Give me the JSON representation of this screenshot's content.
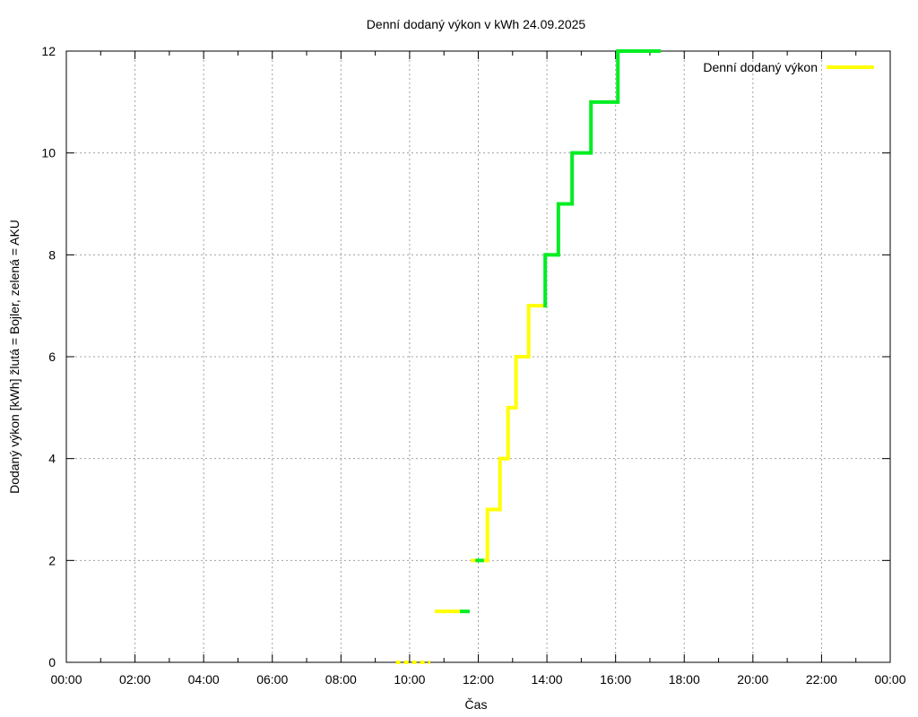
{
  "chart_data": {
    "type": "line",
    "subtype": "step",
    "title": "Denní dodaný výkon v kWh 24.09.2025",
    "xlabel": "Čas",
    "ylabel": "Dodaný výkon [kWh]  žlutá = Bojler, zelená = AKU",
    "xlim": [
      "00:00",
      "24:00"
    ],
    "ylim": [
      0,
      12
    ],
    "x_ticks": [
      "00:00",
      "02:00",
      "04:00",
      "06:00",
      "08:00",
      "10:00",
      "12:00",
      "14:00",
      "16:00",
      "18:00",
      "20:00",
      "22:00",
      "00:00"
    ],
    "y_ticks": [
      0,
      2,
      4,
      6,
      8,
      10,
      12
    ],
    "grid": true,
    "legend": {
      "position": "top-right",
      "entries": [
        {
          "label": "Denní dodaný výkon",
          "color": "#ffff00"
        }
      ]
    },
    "colors": {
      "bojler": "#ffff00",
      "aku": "#00ee22"
    },
    "series": [
      {
        "name": "Denní dodaný výkon",
        "segments": [
          {
            "start": "09:36",
            "end": "10:36",
            "value": 0,
            "source": "Bojler",
            "dashed": true
          },
          {
            "start": "10:44",
            "end": "11:28",
            "value": 1,
            "source": "Bojler"
          },
          {
            "start": "11:28",
            "end": "11:45",
            "value": 1,
            "source": "AKU"
          },
          {
            "start": "11:47",
            "end": "11:55",
            "value": 2,
            "source": "Bojler"
          },
          {
            "start": "11:55",
            "end": "12:10",
            "value": 2,
            "source": "AKU"
          },
          {
            "start": "12:10",
            "end": "12:16",
            "value": 2,
            "source": "Bojler"
          },
          {
            "start": "12:16",
            "end": "12:38",
            "value": 3,
            "source": "Bojler"
          },
          {
            "start": "12:38",
            "end": "12:52",
            "value": 4,
            "source": "Bojler"
          },
          {
            "start": "12:52",
            "end": "13:06",
            "value": 5,
            "source": "Bojler"
          },
          {
            "start": "13:06",
            "end": "13:28",
            "value": 6,
            "source": "Bojler"
          },
          {
            "start": "13:28",
            "end": "13:57",
            "value": 7,
            "source": "Bojler"
          },
          {
            "start": "13:57",
            "end": "14:20",
            "value": 8,
            "source": "AKU"
          },
          {
            "start": "14:20",
            "end": "14:44",
            "value": 9,
            "source": "AKU"
          },
          {
            "start": "14:44",
            "end": "15:17",
            "value": 10,
            "source": "AKU"
          },
          {
            "start": "15:17",
            "end": "16:04",
            "value": 11,
            "source": "AKU"
          },
          {
            "start": "16:04",
            "end": "17:15",
            "value": 12,
            "source": "AKU"
          }
        ]
      }
    ]
  }
}
